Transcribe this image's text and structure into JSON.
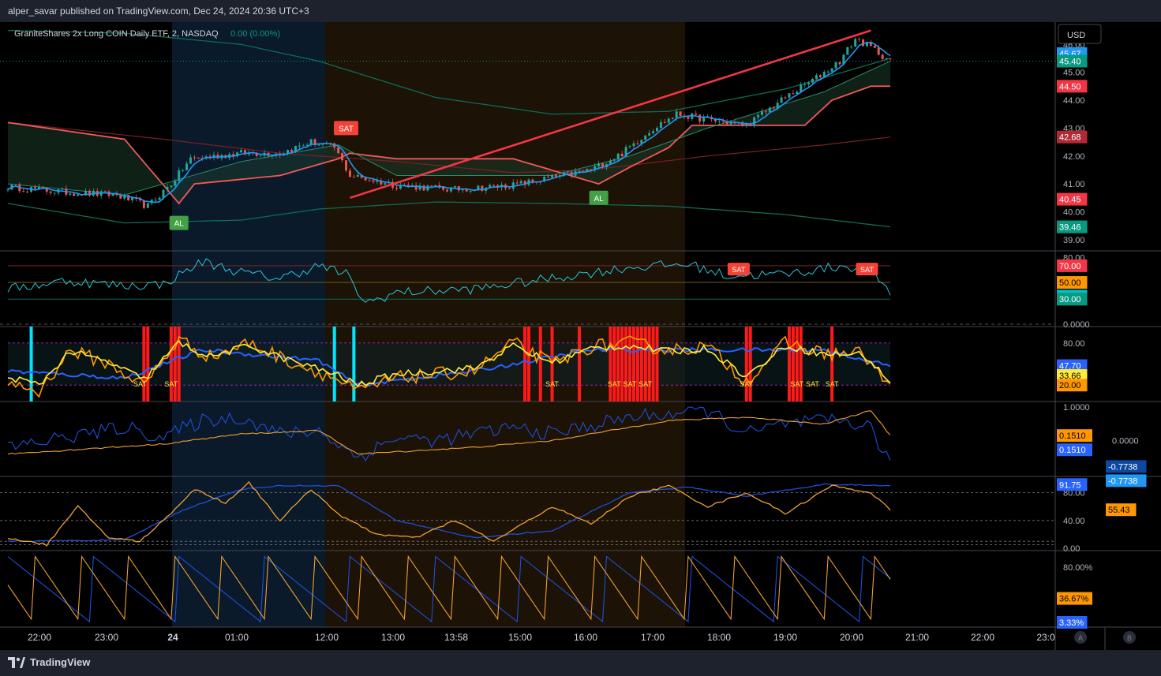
{
  "publisher": "alper_savar published on TradingView.com, Dec 24, 2024 20:36 UTC+3",
  "symbol": {
    "title": "GraniteShares 2x Long COIN Daily ETF, 2, NASDAQ",
    "change": "0.00 (0.00%)"
  },
  "currency": "USD",
  "brand": "TradingView",
  "bottom_buttons": [
    "A",
    "B"
  ],
  "colors": {
    "up": "#26a69a",
    "down": "#ef5350",
    "signal_red": "#f23645",
    "cyan": "#00e5ff",
    "yellow": "#ffeb3b",
    "orange": "#ff9800",
    "blue": "#2962ff",
    "teal": "#089981"
  },
  "chart_data": {
    "type": "line",
    "x_ticks": [
      "22:00",
      "23:00",
      "24",
      "01:00",
      "12:00",
      "13:00",
      "13:58",
      "15:00",
      "16:00",
      "17:00",
      "18:00",
      "19:00",
      "20:00",
      "21:00",
      "22:00",
      "23:0"
    ],
    "panes": [
      {
        "name": "price",
        "ylim": [
          38.6,
          46.8
        ],
        "ticks": [
          "46.00",
          "45.00",
          "44.00",
          "43.00",
          "42.00",
          "41.00",
          "40.00",
          "39.00"
        ],
        "labels": [
          {
            "value": 45.67,
            "text": "45.67",
            "color": "#2196f3"
          },
          {
            "value": 45.4,
            "text": "45.40",
            "color": "#089981"
          },
          {
            "value": 44.5,
            "text": "44.50",
            "color": "#f23645"
          },
          {
            "value": 42.68,
            "text": "42.68",
            "color": "#b22833"
          },
          {
            "value": 40.45,
            "text": "40.45",
            "color": "#f23645"
          },
          {
            "value": 39.46,
            "text": "39.46",
            "color": "#089981"
          }
        ],
        "signals": [
          {
            "text": "AL",
            "bar": 44,
            "value": 39.6,
            "kind": "buy"
          },
          {
            "text": "SAT",
            "bar": 87,
            "value": 43.0,
            "kind": "sell"
          },
          {
            "text": "AL",
            "bar": 152,
            "value": 40.5,
            "kind": "buy"
          }
        ],
        "trendline": [
          [
            88,
            40.5
          ],
          [
            222,
            46.5
          ]
        ]
      },
      {
        "name": "rsi",
        "ylim": [
          0,
          85
        ],
        "ticks": [
          "80.00",
          "0.0000"
        ],
        "labels": [
          {
            "value": 70,
            "text": "70.00",
            "color": "#f23645"
          },
          {
            "value": 50,
            "text": "50.00",
            "color": "#ff9800"
          },
          {
            "value": 33.66,
            "text": "33.66",
            "color": "#00bcd4"
          },
          {
            "value": 30,
            "text": "30.00",
            "color": "#089981"
          }
        ]
      },
      {
        "name": "stoch",
        "ylim": [
          0,
          100
        ],
        "ticks": [
          "80.00"
        ],
        "labels": [
          {
            "value": 47.7,
            "text": "47.70",
            "color": "#2962ff"
          },
          {
            "value": 33.66,
            "text": "33.66",
            "color": "#ffeb3b"
          },
          {
            "value": 20,
            "text": "20.00",
            "color": "#ff9800"
          }
        ],
        "signal_text": "SAT"
      },
      {
        "name": "oscillator",
        "ylim": [
          -1,
          1.1
        ],
        "ticks": [
          "1.0000",
          "0.0000"
        ],
        "labels": [
          {
            "value": 0.151,
            "text": "0.1510",
            "color": "#ff9800"
          },
          {
            "value": 0.151,
            "text": "0.1510",
            "color": "#2962ff"
          },
          {
            "value": -0.7738,
            "text": "-0.7738",
            "color": "#0d47a1"
          },
          {
            "value": -0.7738,
            "text": "-0.7738",
            "color": "#2196f3"
          }
        ]
      },
      {
        "name": "adx",
        "ylim": [
          0,
          100
        ],
        "ticks": [
          "80.00",
          "40.00",
          "0.00"
        ],
        "labels": [
          {
            "value": 91.75,
            "text": "91.75",
            "color": "#2962ff"
          },
          {
            "value": 55.43,
            "text": "55.43",
            "color": "#ff9800"
          }
        ]
      },
      {
        "name": "percent",
        "ylim": [
          0,
          100
        ],
        "ticks": [
          "80.00%"
        ],
        "labels": [
          {
            "value": 36.67,
            "text": "36.67%",
            "color": "#ff9800"
          },
          {
            "value": 3.33,
            "text": "3.33%",
            "color": "#2962ff"
          }
        ]
      }
    ]
  }
}
